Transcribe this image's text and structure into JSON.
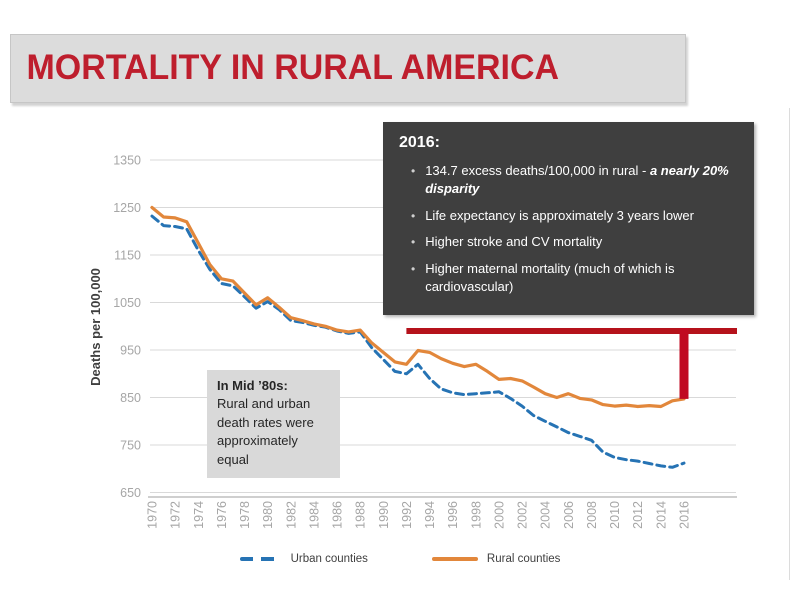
{
  "slide": {
    "title": "MORTALITY IN RURAL AMERICA"
  },
  "chart_data": {
    "type": "line",
    "title": "",
    "xlabel": "",
    "ylabel": "Deaths per 100,000",
    "ylim": [
      650,
      1350
    ],
    "yticks": [
      650,
      750,
      850,
      950,
      1050,
      1150,
      1250,
      1350
    ],
    "xticks": [
      1970,
      1972,
      1974,
      1976,
      1978,
      1980,
      1982,
      1984,
      1986,
      1988,
      1990,
      1992,
      1994,
      1996,
      1998,
      2000,
      2002,
      2004,
      2006,
      2008,
      2010,
      2012,
      2014,
      2016
    ],
    "grid": true,
    "legend_position": "bottom",
    "x": [
      1970,
      1971,
      1972,
      1973,
      1974,
      1975,
      1976,
      1977,
      1978,
      1979,
      1980,
      1981,
      1982,
      1983,
      1984,
      1985,
      1986,
      1987,
      1988,
      1989,
      1990,
      1991,
      1992,
      1993,
      1994,
      1995,
      1996,
      1997,
      1998,
      1999,
      2000,
      2001,
      2002,
      2003,
      2004,
      2005,
      2006,
      2007,
      2008,
      2009,
      2010,
      2011,
      2012,
      2013,
      2014,
      2015,
      2016
    ],
    "series": [
      {
        "name": "Urban counties",
        "color": "#2673b4",
        "line_style": "dashed",
        "values": [
          1232,
          1212,
          1210,
          1205,
          1160,
          1120,
          1090,
          1085,
          1062,
          1038,
          1052,
          1035,
          1012,
          1008,
          1002,
          998,
          990,
          985,
          988,
          955,
          930,
          905,
          900,
          920,
          890,
          868,
          860,
          856,
          858,
          860,
          862,
          848,
          832,
          812,
          800,
          788,
          776,
          768,
          760,
          735,
          724,
          719,
          716,
          711,
          706,
          703,
          712
        ]
      },
      {
        "name": "Rural counties",
        "color": "#e2873b",
        "line_style": "solid",
        "values": [
          1250,
          1230,
          1228,
          1220,
          1175,
          1130,
          1100,
          1095,
          1070,
          1045,
          1060,
          1040,
          1018,
          1012,
          1005,
          1000,
          992,
          988,
          992,
          965,
          945,
          925,
          920,
          949,
          945,
          932,
          922,
          915,
          920,
          905,
          888,
          890,
          885,
          872,
          858,
          850,
          858,
          848,
          845,
          835,
          832,
          834,
          831,
          833,
          831,
          843,
          847
        ]
      }
    ]
  },
  "callouts": {
    "y2016": {
      "heading": "2016:",
      "bg": "#3f3f3f",
      "text_color": "#ffffff",
      "bullets": [
        {
          "text": "134.7 excess deaths/100,000 in rural - ",
          "emphasis": "a nearly 20% disparity"
        },
        {
          "text": "Life expectancy is approximately 3 years lower",
          "emphasis": ""
        },
        {
          "text": "Higher stroke and CV mortality",
          "emphasis": ""
        },
        {
          "text": "Higher maternal mortality (much of which is cardiovascular)",
          "emphasis": ""
        }
      ]
    },
    "mid80s": {
      "heading": "In Mid ’80s:",
      "body": "Rural and urban death rates were approximately equal",
      "bg": "#d9d9d9",
      "text_color": "#262626"
    }
  },
  "annotations": {
    "disparity_bracket": {
      "description": "red bracket marking rural-urban mortality gap",
      "start_year": 1992,
      "end_year": 2016,
      "level_value": 990,
      "drop_to_value": 847,
      "horizontal_color": "#b5121b",
      "vertical_color": "#c00a21"
    }
  },
  "theme": {
    "title_color": "#be1e2d",
    "banner_bg": "#dcdcdc",
    "grid_color": "#d9d9d9",
    "axis_line_color": "#bfbfbf",
    "axis_text_color": "#a6a6a6",
    "legend_text_color": "#404040"
  }
}
